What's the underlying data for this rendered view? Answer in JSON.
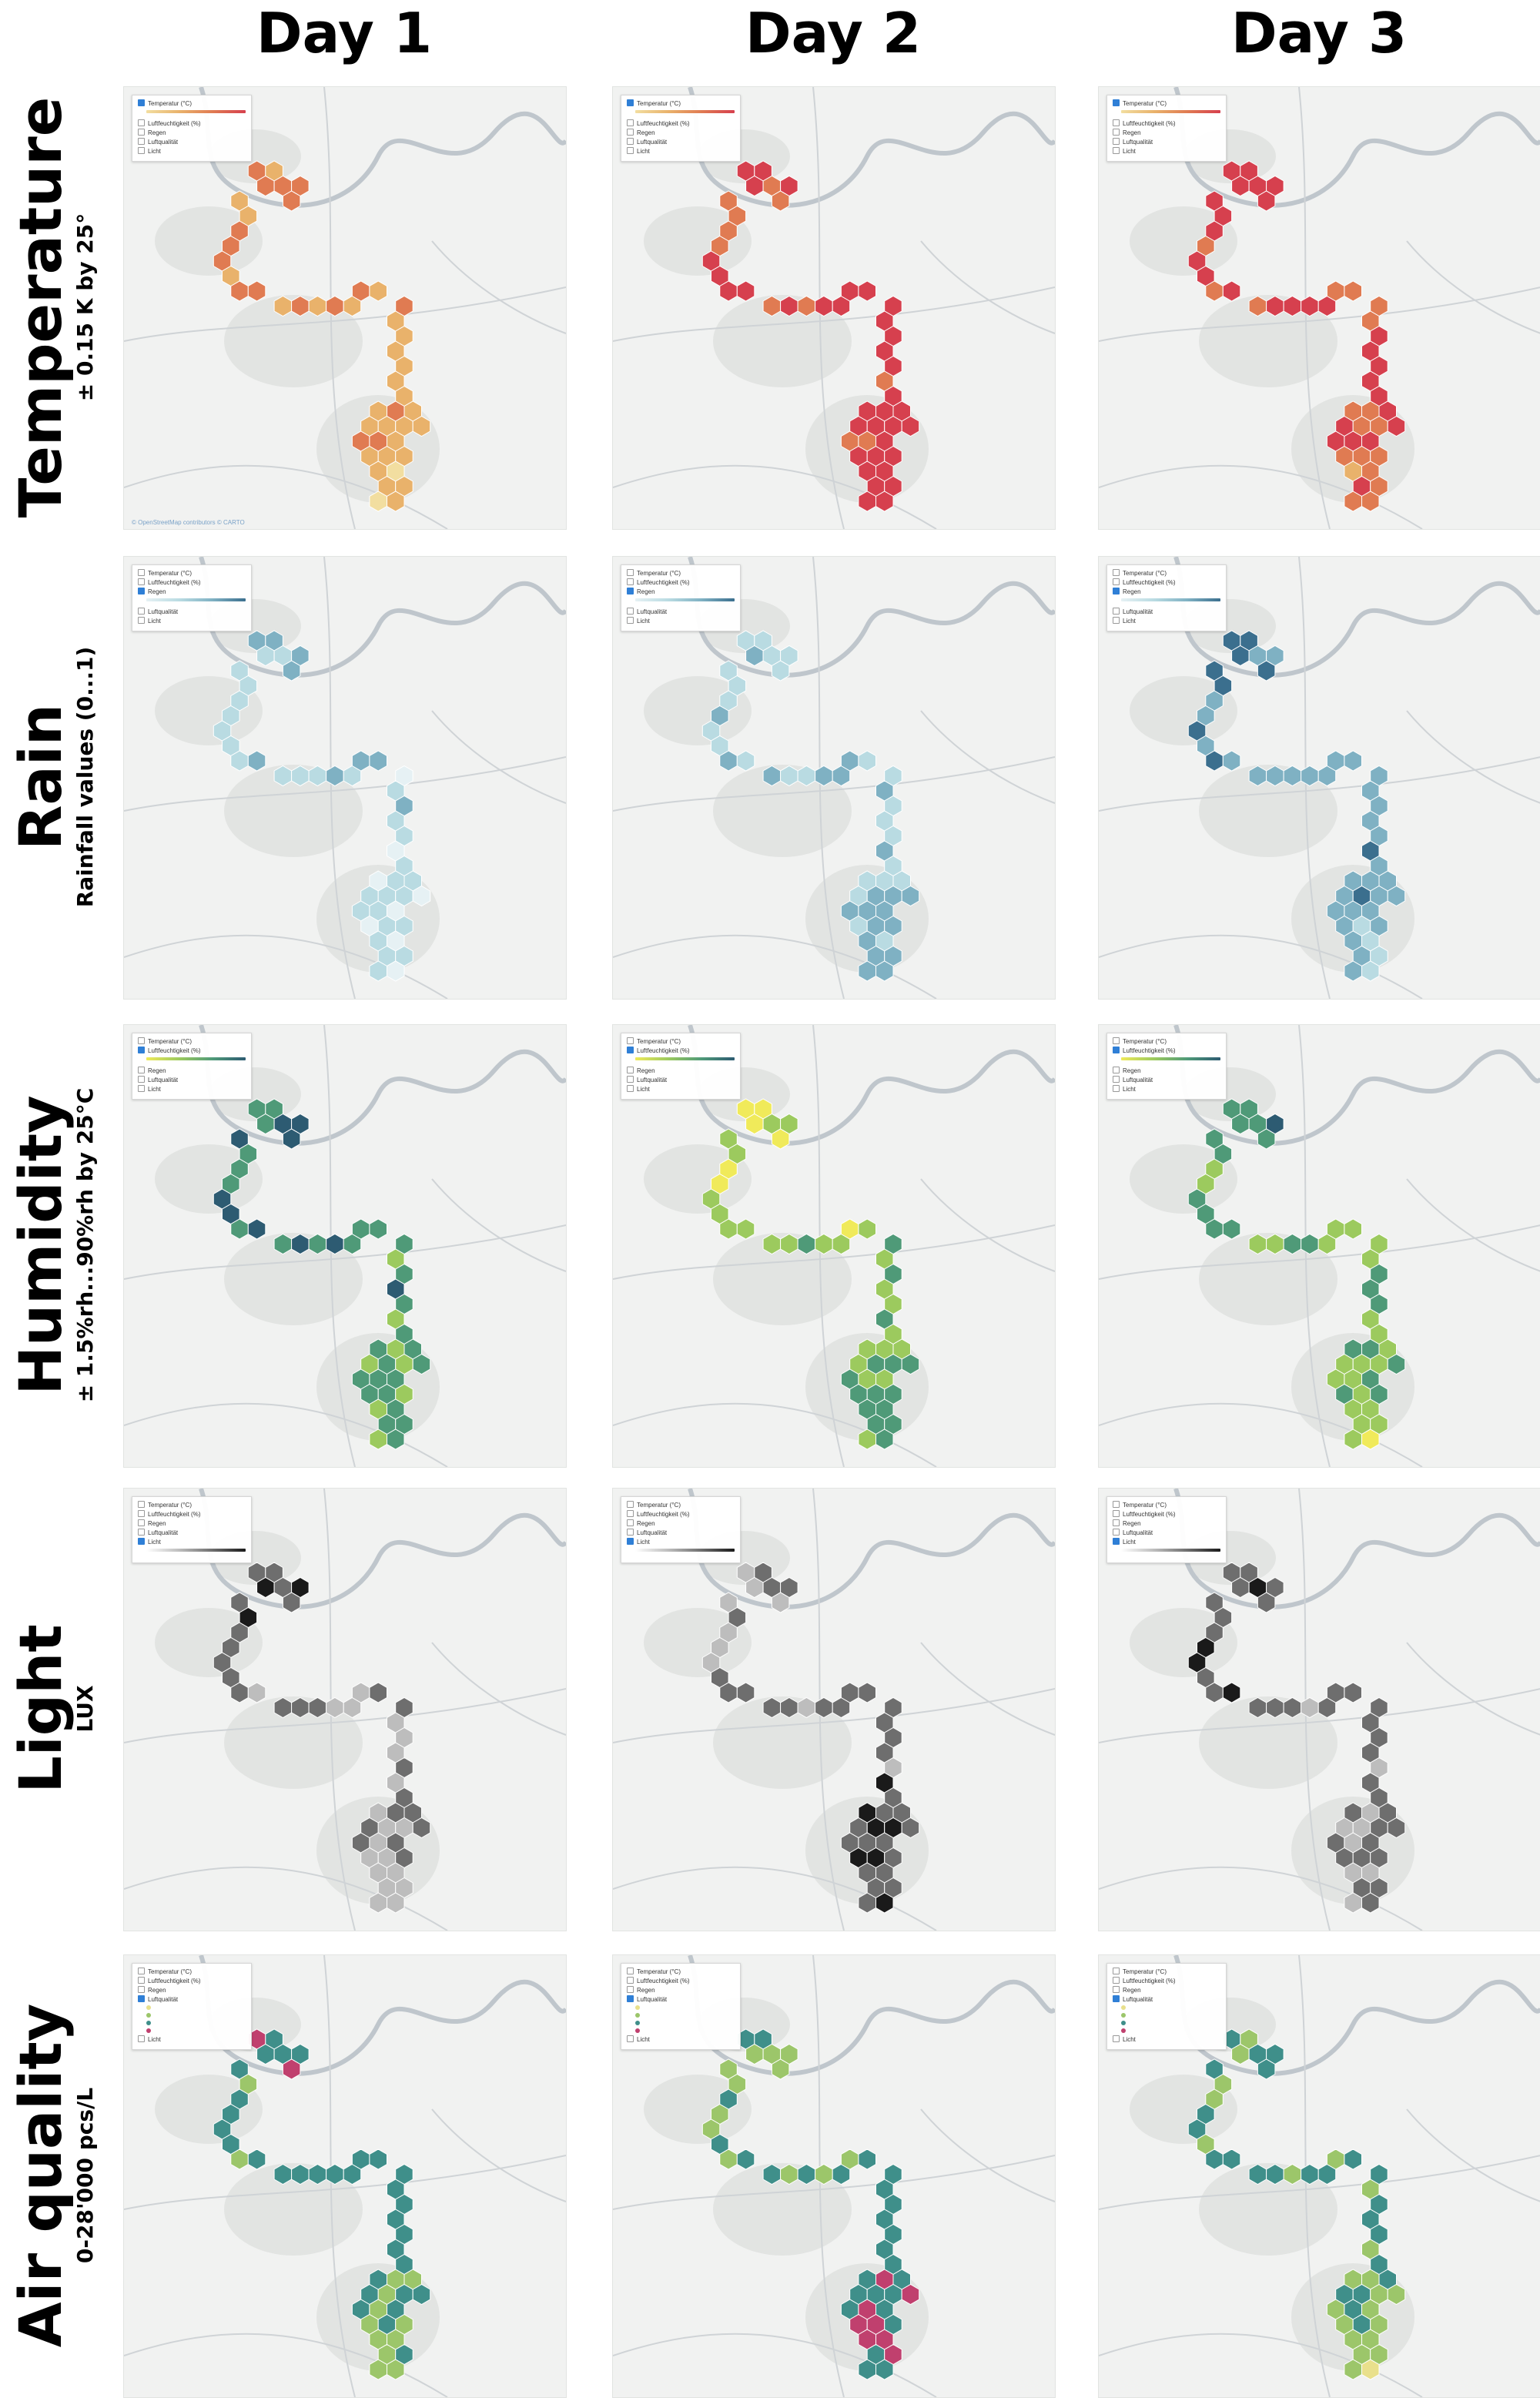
{
  "columns": [
    "Day 1",
    "Day 2",
    "Day 3"
  ],
  "rows": [
    {
      "title": "Temperature",
      "subtitle": "± 0.15 K by 25°"
    },
    {
      "title": "Rain",
      "subtitle": "Rainfall values (0...1)"
    },
    {
      "title": "Humidity",
      "subtitle": "± 1.5%rh...90%rh by 25°C"
    },
    {
      "title": "Light",
      "subtitle": "LUX"
    },
    {
      "title": "Air quality",
      "subtitle": "0-28'000 pcs/L"
    }
  ],
  "legend_layers": [
    "Temperatur (°C)",
    "Luftfeuchtigkeit (%)",
    "Regen",
    "Luftqualität",
    "Licht"
  ],
  "ramps": {
    "temperature": [
      "#f2dea0",
      "#e9b26b",
      "#e07b52",
      "#d6404e"
    ],
    "rain": [
      "#e6f1f4",
      "#b9dbe2",
      "#7fb1c3",
      "#3b6f8e"
    ],
    "humidity": [
      "#f0ea5a",
      "#9cca5e",
      "#4f9a78",
      "#2d5b72"
    ],
    "light": [
      "#ffffff",
      "#bdbdbd",
      "#6e6e6e",
      "#1a1a1a"
    ],
    "air": [
      "#e9e08c",
      "#9cc66a",
      "#3f8f8a",
      "#c0406e"
    ]
  },
  "map_colors": {
    "background": "#f1f2f1",
    "river": "#bfc6cc",
    "road": "#cfd3d6",
    "town": "#d9dbd9"
  },
  "attribution": "© OpenStreetMap contributors © CARTO"
}
